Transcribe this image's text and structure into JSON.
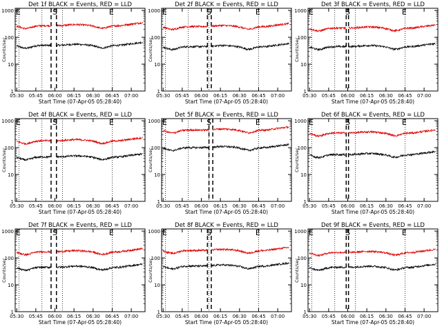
{
  "colors": {
    "events": "#000000",
    "lld": "#dd0000",
    "axes": "#000000",
    "background": "#ffffff"
  },
  "shared": {
    "x_tick_labels": [
      "05:30",
      "05:45",
      "06:00",
      "06:15",
      "06:30",
      "06:45",
      "07:00"
    ],
    "x_tick_hours": [
      5.5,
      5.75,
      6.0,
      6.25,
      6.5,
      6.75,
      7.0
    ],
    "xlim_hours": [
      5.48,
      7.18
    ],
    "y_tick_labels": [
      "1",
      "10",
      "100",
      "1000"
    ],
    "y_tick_values": [
      1,
      10,
      100,
      1000
    ],
    "ylim": [
      1,
      1200
    ],
    "y_scale": "log",
    "xlabel": "Start Time (07-Apr-05 05:28:40)",
    "ylabel": "Counts/sec",
    "event_marker_labels": {
      "s": "S",
      "e": "E"
    }
  },
  "chart_data": [
    {
      "type": "line",
      "title": "Det 1f BLACK = Events, RED = LLD",
      "series": [
        {
          "name": "Events",
          "mean": 50
        },
        {
          "name": "LLD",
          "mean": 270
        }
      ],
      "dotted_lines_hours": [
        5.53,
        5.83,
        6.1,
        6.75
      ],
      "dashed_lines_hours": [
        5.95,
        6.02
      ],
      "event_labels_hours": {
        "e_left": 5.52,
        "s": 6.0,
        "e_right": 6.74
      }
    },
    {
      "type": "line",
      "title": "Det 2f BLACK = Events, RED = LLD",
      "series": [
        {
          "name": "Events",
          "mean": 45
        },
        {
          "name": "LLD",
          "mean": 250
        }
      ],
      "dotted_lines_hours": [
        5.53,
        5.83,
        6.1,
        6.75
      ],
      "dashed_lines_hours": [
        6.08,
        6.13
      ],
      "event_labels_hours": {
        "e_left": 5.52,
        "s": 6.1,
        "e_right": 6.74
      }
    },
    {
      "type": "line",
      "title": "Det 3f BLACK = Events, RED = LLD",
      "series": [
        {
          "name": "Events",
          "mean": 45
        },
        {
          "name": "LLD",
          "mean": 220
        }
      ],
      "dotted_lines_hours": [
        5.53,
        5.83,
        6.1,
        6.75
      ],
      "dashed_lines_hours": [
        5.98,
        6.01
      ],
      "event_labels_hours": {
        "e_left": 5.52,
        "s": 6.0,
        "e_right": 6.74
      }
    },
    {
      "type": "line",
      "title": "Det 4f BLACK = Events, RED = LLD",
      "series": [
        {
          "name": "Events",
          "mean": 45
        },
        {
          "name": "LLD",
          "mean": 180
        }
      ],
      "dotted_lines_hours": [
        5.53,
        5.83,
        6.1,
        6.75
      ],
      "dashed_lines_hours": [
        5.95,
        6.02
      ],
      "event_labels_hours": {
        "e_left": 5.52,
        "s": 6.0,
        "e_right": 6.74
      }
    },
    {
      "type": "line",
      "title": "Det 5f BLACK = Events, RED = LLD",
      "series": [
        {
          "name": "Events",
          "mean": 100
        },
        {
          "name": "LLD",
          "mean": 450
        }
      ],
      "dotted_lines_hours": [
        5.53,
        5.83,
        6.1,
        6.75
      ],
      "dashed_lines_hours": [
        6.1,
        6.15
      ],
      "event_labels_hours": {
        "e_left": 5.52,
        "s": 6.1,
        "e_right": 6.74
      }
    },
    {
      "type": "line",
      "title": "Det 6f BLACK = Events, RED = LLD",
      "series": [
        {
          "name": "Events",
          "mean": 55
        },
        {
          "name": "LLD",
          "mean": 350
        }
      ],
      "dotted_lines_hours": [
        5.53,
        5.83,
        6.1,
        6.75
      ],
      "dashed_lines_hours": [
        5.98,
        6.01
      ],
      "event_labels_hours": {
        "e_left": 5.52,
        "s": 6.0,
        "e_right": 6.74
      }
    },
    {
      "type": "line",
      "title": "Det 7f BLACK = Events, RED = LLD",
      "series": [
        {
          "name": "Events",
          "mean": 45
        },
        {
          "name": "LLD",
          "mean": 170
        }
      ],
      "dotted_lines_hours": [
        5.53,
        5.83,
        6.1,
        6.75
      ],
      "dashed_lines_hours": [
        5.95,
        6.02
      ],
      "event_labels_hours": {
        "e_left": 5.52,
        "s": 6.0,
        "e_right": 6.74
      }
    },
    {
      "type": "line",
      "title": "Det 8f BLACK = Events, RED = LLD",
      "series": [
        {
          "name": "Events",
          "mean": 50
        },
        {
          "name": "LLD",
          "mean": 190
        }
      ],
      "dotted_lines_hours": [
        5.53,
        5.83,
        6.1,
        6.75
      ],
      "dashed_lines_hours": [
        6.08,
        6.13
      ],
      "event_labels_hours": {
        "e_left": 5.52,
        "s": 6.1,
        "e_right": 6.74
      }
    },
    {
      "type": "line",
      "title": "Det 9f BLACK = Events, RED = LLD",
      "series": [
        {
          "name": "Events",
          "mean": 45
        },
        {
          "name": "LLD",
          "mean": 160
        }
      ],
      "dotted_lines_hours": [
        5.53,
        5.83,
        6.1,
        6.75
      ],
      "dashed_lines_hours": [
        5.98,
        6.01
      ],
      "event_labels_hours": {
        "e_left": 5.52,
        "s": 6.0,
        "e_right": 6.74
      }
    }
  ]
}
